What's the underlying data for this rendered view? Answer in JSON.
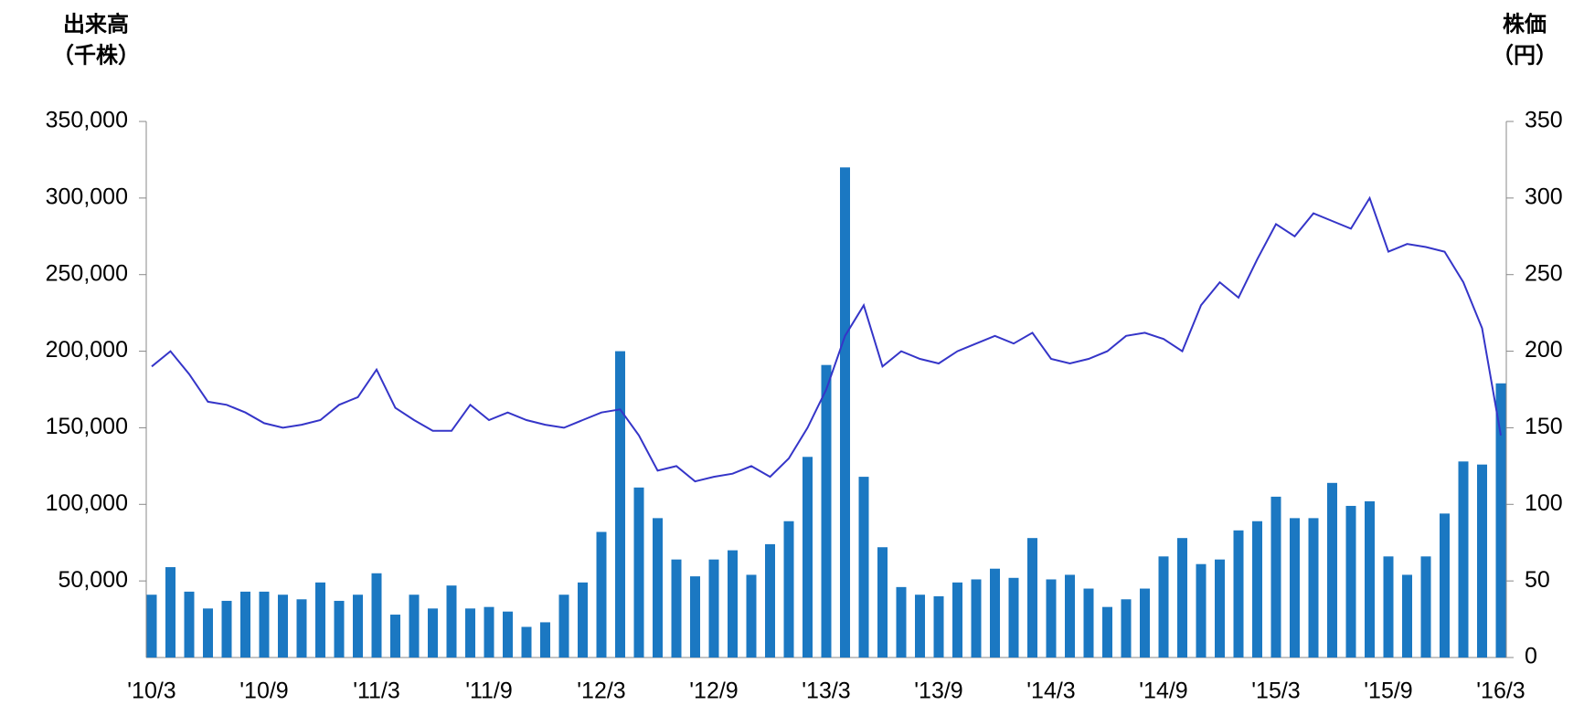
{
  "chart_data": {
    "type": "bar_line",
    "y_label": [
      "出来高",
      "（千株）"
    ],
    "y2_label": [
      "株価",
      "（円）"
    ],
    "categories": [
      "'10/3",
      null,
      null,
      null,
      null,
      null,
      "'10/9",
      null,
      null,
      null,
      null,
      null,
      "'11/3",
      null,
      null,
      null,
      null,
      null,
      "'11/9",
      null,
      null,
      null,
      null,
      null,
      "'12/3",
      null,
      null,
      null,
      null,
      null,
      "'12/9",
      null,
      null,
      null,
      null,
      null,
      "'13/3",
      null,
      null,
      null,
      null,
      null,
      "'13/9",
      null,
      null,
      null,
      null,
      null,
      "'14/3",
      null,
      null,
      null,
      null,
      null,
      "'14/9",
      null,
      null,
      null,
      null,
      null,
      "'15/3",
      null,
      null,
      null,
      null,
      null,
      "'15/9",
      null,
      null,
      null,
      null,
      null,
      "'16/3"
    ],
    "series": [
      {
        "name": "出来高",
        "type": "bar",
        "color": "#1b78c2",
        "axis": "y",
        "values": [
          41000,
          59000,
          43000,
          32000,
          37000,
          43000,
          43000,
          41000,
          38000,
          49000,
          37000,
          41000,
          55000,
          28000,
          41000,
          32000,
          47000,
          32000,
          33000,
          30000,
          20000,
          23000,
          41000,
          49000,
          82000,
          200000,
          111000,
          91000,
          64000,
          53000,
          64000,
          70000,
          54000,
          74000,
          89000,
          131000,
          191000,
          320000,
          118000,
          72000,
          46000,
          41000,
          40000,
          49000,
          51000,
          58000,
          52000,
          78000,
          51000,
          54000,
          45000,
          33000,
          38000,
          45000,
          66000,
          78000,
          61000,
          64000,
          83000,
          89000,
          105000,
          91000,
          91000,
          114000,
          99000,
          102000,
          66000,
          54000,
          66000,
          94000,
          128000,
          126000,
          179000
        ]
      },
      {
        "name": "株価",
        "type": "line",
        "color": "#3535c8",
        "axis": "y2",
        "values": [
          190,
          200,
          185,
          167,
          165,
          160,
          153,
          150,
          152,
          155,
          165,
          170,
          188,
          163,
          155,
          148,
          148,
          165,
          155,
          160,
          155,
          152,
          150,
          155,
          160,
          162,
          145,
          122,
          125,
          115,
          118,
          120,
          125,
          118,
          130,
          150,
          175,
          210,
          230,
          190,
          200,
          195,
          192,
          200,
          205,
          210,
          205,
          212,
          195,
          192,
          195,
          200,
          210,
          212,
          208,
          200,
          230,
          245,
          235,
          260,
          283,
          275,
          290,
          285,
          280,
          300,
          265,
          270,
          268,
          265,
          245,
          215,
          145
        ]
      }
    ],
    "ylim": [
      0,
      350000
    ],
    "yticks": [
      {
        "value": 50000,
        "label": "50,000"
      },
      {
        "value": 100000,
        "label": "100,000"
      },
      {
        "value": 150000,
        "label": "150,000"
      },
      {
        "value": 200000,
        "label": "200,000"
      },
      {
        "value": 250000,
        "label": "250,000"
      },
      {
        "value": 300000,
        "label": "300,000"
      },
      {
        "value": 350000,
        "label": "350,000"
      }
    ],
    "y2lim": [
      0,
      350
    ],
    "y2ticks": [
      0,
      50,
      100,
      150,
      200,
      250,
      300,
      350
    ]
  }
}
